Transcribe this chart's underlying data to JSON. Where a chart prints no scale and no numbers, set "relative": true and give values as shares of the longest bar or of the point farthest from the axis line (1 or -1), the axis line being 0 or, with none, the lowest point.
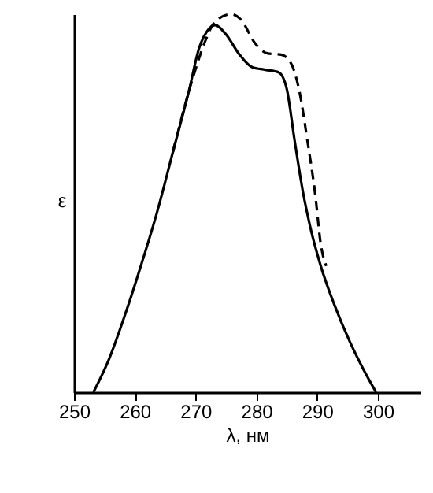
{
  "chart_data": {
    "type": "line",
    "relative": true,
    "xlabel": "λ, нм",
    "ylabel": "ε",
    "xlim": [
      250,
      307
    ],
    "xticks": [
      250,
      260,
      270,
      280,
      290,
      300
    ],
    "marker": "none",
    "series": [
      {
        "color": "#000000",
        "line_style": "solid",
        "x": [
          253.2,
          255.8,
          258.4,
          261.0,
          263.7,
          266.3,
          268.9,
          270.6,
          271.9,
          273.2,
          275.0,
          277.1,
          279.3,
          281.5,
          283.7,
          285.0,
          286.3,
          287.6,
          288.9,
          290.6,
          292.8,
          295.4,
          297.6,
          299.7
        ],
        "values": [
          0,
          0.089,
          0.205,
          0.334,
          0.478,
          0.637,
          0.796,
          0.911,
          0.955,
          0.971,
          0.947,
          0.896,
          0.86,
          0.853,
          0.846,
          0.803,
          0.666,
          0.536,
          0.435,
          0.334,
          0.233,
          0.133,
          0.061,
          0
        ]
      },
      {
        "color": "#000000",
        "line_style": "dashed",
        "x": [
          266.3,
          268.9,
          269.7,
          271.5,
          273.2,
          275.8,
          277.6,
          279.7,
          281.9,
          284.1,
          285.8,
          287.1,
          288.4,
          289.7,
          290.6,
          291.5
        ],
        "values": [
          0.637,
          0.796,
          0.839,
          0.925,
          0.98,
          1.0,
          0.983,
          0.925,
          0.896,
          0.893,
          0.867,
          0.795,
          0.666,
          0.522,
          0.392,
          0.334
        ]
      }
    ]
  }
}
